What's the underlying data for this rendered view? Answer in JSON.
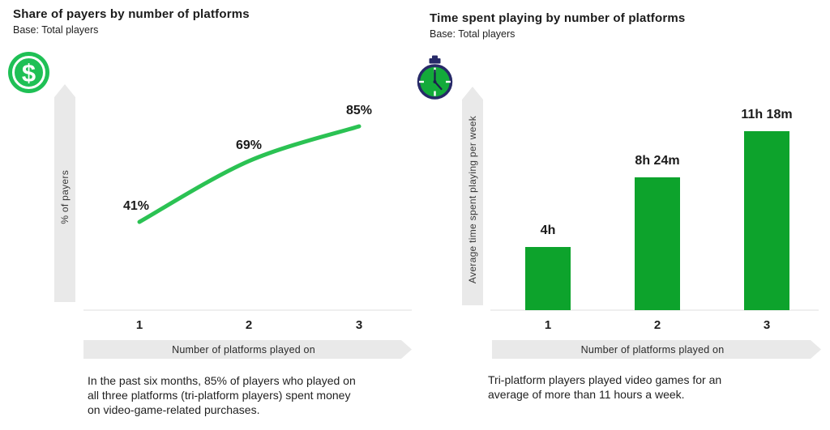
{
  "panels": [
    {
      "title": "Share of payers by number of platforms",
      "subtitle": "Base: Total players",
      "icon": "dollar-coin-icon",
      "caption_lines": [
        "In the past six months, 85% of players who played on",
        "all three platforms (tri-platform players) spent money",
        "on video-game-related purchases."
      ]
    },
    {
      "title": "Time spent playing by number of platforms",
      "subtitle": "Base: Total players",
      "icon": "stopwatch-icon",
      "caption_lines": [
        "Tri-platform players played video games for an",
        "average of more than 11 hours a week."
      ]
    }
  ],
  "chart_data": [
    {
      "type": "line",
      "title": "Share of payers by number of platforms",
      "subtitle": "Base: Total players",
      "categories": [
        "1",
        "2",
        "3"
      ],
      "values": [
        41,
        69,
        85
      ],
      "data_labels": [
        "41%",
        "69%",
        "85%"
      ],
      "xlabel": "Number of platforms played on",
      "ylabel": "% of payers",
      "ylim": [
        0,
        100
      ],
      "grid": false,
      "legend": "none",
      "line_color": "#2bc253"
    },
    {
      "type": "bar",
      "title": "Time spent playing by number of platforms",
      "subtitle": "Base: Total players",
      "categories": [
        "1",
        "2",
        "3"
      ],
      "values": [
        4.0,
        8.4,
        11.3
      ],
      "values_unit": "hours per week",
      "data_labels": [
        "4h",
        "8h 24m",
        "11h 18m"
      ],
      "xlabel": "Number of platforms played on",
      "ylabel": "Average time spent playing per week",
      "grid": false,
      "legend": "none",
      "bar_color": "#0da32c"
    }
  ],
  "colors": {
    "line_green": "#2bc253",
    "bar_green": "#0da32c",
    "coin_green": "#1fc055",
    "stopwatch_face_green": "#13aa3a",
    "stopwatch_navy": "#272a68",
    "band_gray": "#e9e9e9",
    "baseline_gray": "#efefef",
    "text_dark": "#1b1b1b"
  }
}
